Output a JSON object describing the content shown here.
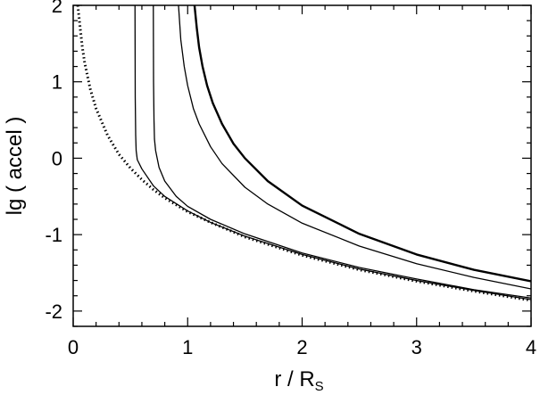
{
  "chart_data": {
    "type": "line",
    "title": "",
    "xlabel": "r / R",
    "xlabel_sub": "S",
    "ylabel": "lg ( accel )",
    "xlim": [
      0,
      4
    ],
    "ylim": [
      -2.2,
      2
    ],
    "xticks": [
      "0",
      "1",
      "2",
      "3",
      "4"
    ],
    "yticks": [
      "-2",
      "-1",
      "0",
      "1",
      "2"
    ],
    "grid": false,
    "legend": "none",
    "series": [
      {
        "style": "dotted",
        "width": "thick",
        "x": [
          0.04,
          0.06,
          0.08,
          0.1,
          0.15,
          0.2,
          0.3,
          0.4,
          0.5,
          0.6,
          0.7,
          0.8,
          1.0,
          1.2,
          1.5,
          2.0,
          2.5,
          3.0,
          3.5,
          4.0
        ],
        "y": [
          2.0,
          1.72,
          1.45,
          1.25,
          0.9,
          0.65,
          0.3,
          0.05,
          -0.13,
          -0.28,
          -0.41,
          -0.52,
          -0.7,
          -0.84,
          -1.03,
          -1.27,
          -1.46,
          -1.61,
          -1.74,
          -1.86
        ]
      },
      {
        "style": "solid",
        "width": "thin",
        "x": [
          0.54,
          0.542,
          0.546,
          0.55,
          0.56,
          0.6,
          0.7,
          0.8,
          1.0,
          1.2,
          1.5,
          2.0,
          2.5,
          3.0,
          3.5,
          4.0
        ],
        "y": [
          2.0,
          0.8,
          0.3,
          0.1,
          -0.02,
          -0.14,
          -0.36,
          -0.5,
          -0.69,
          -0.84,
          -1.02,
          -1.26,
          -1.45,
          -1.6,
          -1.73,
          -1.85
        ]
      },
      {
        "style": "solid",
        "width": "thin",
        "x": [
          0.7,
          0.702,
          0.706,
          0.71,
          0.72,
          0.75,
          0.8,
          0.9,
          1.0,
          1.2,
          1.5,
          2.0,
          2.5,
          3.0,
          3.5,
          4.0
        ],
        "y": [
          2.0,
          1.0,
          0.5,
          0.25,
          0.1,
          -0.12,
          -0.3,
          -0.5,
          -0.63,
          -0.8,
          -0.99,
          -1.24,
          -1.43,
          -1.58,
          -1.72,
          -1.83
        ]
      },
      {
        "style": "solid",
        "width": "thin",
        "x": [
          0.92,
          0.94,
          0.97,
          1.0,
          1.05,
          1.1,
          1.2,
          1.3,
          1.5,
          1.7,
          2.0,
          2.5,
          3.0,
          3.5,
          4.0
        ],
        "y": [
          2.0,
          1.55,
          1.2,
          0.95,
          0.65,
          0.45,
          0.15,
          -0.07,
          -0.38,
          -0.6,
          -0.85,
          -1.15,
          -1.38,
          -1.56,
          -1.71
        ]
      },
      {
        "style": "solid",
        "width": "thick",
        "x": [
          1.06,
          1.08,
          1.1,
          1.13,
          1.17,
          1.22,
          1.3,
          1.4,
          1.5,
          1.7,
          2.0,
          2.5,
          3.0,
          3.5,
          4.0
        ],
        "y": [
          2.0,
          1.7,
          1.45,
          1.2,
          0.95,
          0.72,
          0.45,
          0.19,
          0.0,
          -0.3,
          -0.62,
          -0.99,
          -1.26,
          -1.46,
          -1.61
        ]
      }
    ]
  }
}
